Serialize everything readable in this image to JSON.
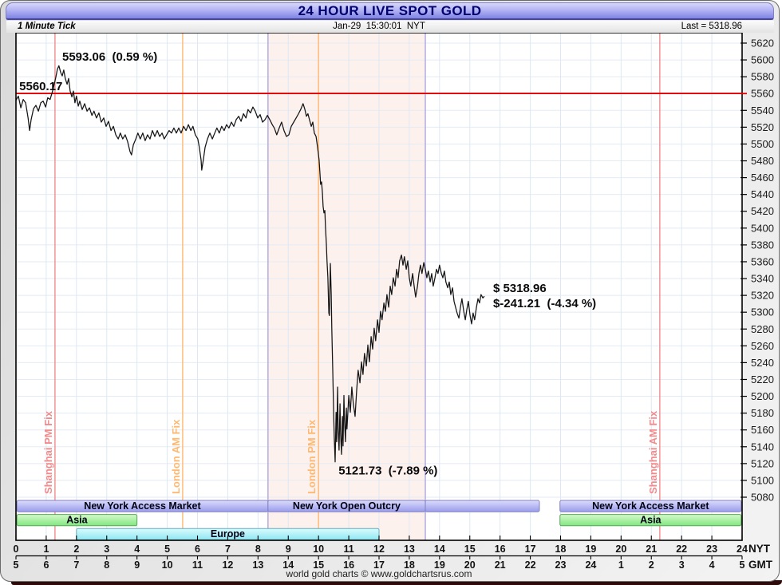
{
  "window": {
    "title": "24 HOUR LIVE SPOT GOLD"
  },
  "subheader": {
    "left": "1 Minute Tick",
    "center": "Jan-29  15:30:01  NYT",
    "right": "Last = 5318.96"
  },
  "footer": "world gold charts © www.goldchartsrus.com",
  "colors": {
    "title_text": "#00006e",
    "grid_h": "#e3ebf4",
    "grid_v": "#dde8f3",
    "pink_band": "#fdf1ee",
    "band_edge": "#b7b1e2",
    "open_line": "#e30000",
    "price_line": "#141414",
    "salmon": "#f28b8b",
    "orange": "#ffb870"
  },
  "chart_data": {
    "type": "line",
    "title": "24 HOUR LIVE SPOT GOLD",
    "subtitle": "1 Minute Tick",
    "timestamp": "Jan-29 15:30:01 NYT",
    "last": 5318.96,
    "open_price": 5560.17,
    "high": 5593.06,
    "high_pct": "0.59 %",
    "low": 5121.73,
    "low_pct": "-7.89 %",
    "change": -241.21,
    "change_pct": "-4.34 %",
    "xlabel": "NYT",
    "xlabel2": "GMT",
    "ylabel": "",
    "x_range_hours": [
      0,
      24
    ],
    "y_axis": {
      "min": 5080,
      "max": 5620,
      "step": 20
    },
    "nyt_ticks": [
      "0",
      "1",
      "2",
      "3",
      "4",
      "5",
      "6",
      "7",
      "8",
      "9",
      "10",
      "11",
      "12",
      "13",
      "14",
      "15",
      "16",
      "17",
      "18",
      "19",
      "20",
      "21",
      "22",
      "23",
      "24"
    ],
    "gmt_ticks": [
      "5",
      "6",
      "7",
      "8",
      "9",
      "10",
      "11",
      "12",
      "13",
      "14",
      "15",
      "16",
      "17",
      "18",
      "19",
      "20",
      "21",
      "22",
      "23",
      "24",
      "1",
      "2",
      "3",
      "4",
      "5"
    ],
    "pink_band": {
      "start": 8.33,
      "end": 13.53
    },
    "fix_lines": [
      {
        "label": "Shanghai PM Fix",
        "hour": 1.29,
        "color": "#f28b8b"
      },
      {
        "label": "London AM Fix",
        "hour": 5.51,
        "color": "#ffb870"
      },
      {
        "label": "London PM Fix",
        "hour": 10.0,
        "color": "#ffb870"
      },
      {
        "label": "Shanghai AM Fix",
        "hour": 21.28,
        "color": "#f28b8b"
      }
    ],
    "annotations": [
      {
        "id": "high-label",
        "text": "5593.06  (0.59 %)",
        "hour": 1.53,
        "price": 5599
      },
      {
        "id": "open-label",
        "text": "5560.17",
        "hour": 0.11,
        "price": 5564
      },
      {
        "id": "last-price",
        "text": "$ 5318.96",
        "hour": 15.77,
        "price": 5324
      },
      {
        "id": "last-change",
        "text": "$-241.21  (-4.34 %)",
        "hour": 15.77,
        "price": 5306
      },
      {
        "id": "low-label",
        "text": "5121.73  (-7.89 %)",
        "hour": 10.66,
        "price": 5107
      }
    ],
    "sessions": [
      {
        "row": 0,
        "style": "periwinkle",
        "segments": [
          {
            "label": "New York Access Market",
            "start": 0.03,
            "end": 8.33
          },
          {
            "label": "New York Open Outcry",
            "start": 8.33,
            "end": 13.53
          },
          {
            "label": "",
            "start": 13.53,
            "end": 17.3
          },
          {
            "label": "New York Access Market",
            "start": 17.98,
            "end": 23.97
          }
        ]
      },
      {
        "row": 1,
        "style": "green",
        "segments": [
          {
            "label": "Asia",
            "start": 0.03,
            "end": 4.0
          },
          {
            "label": "Asia",
            "start": 17.98,
            "end": 23.97
          }
        ]
      },
      {
        "row": 2,
        "style": "cyan",
        "segments": [
          {
            "label": "Europe",
            "start": 2.0,
            "end": 12.0
          }
        ]
      }
    ],
    "series": [
      {
        "name": "Spot Gold (1 minute tick)",
        "points": [
          [
            0.0,
            5552
          ],
          [
            0.08,
            5557
          ],
          [
            0.16,
            5543
          ],
          [
            0.24,
            5553
          ],
          [
            0.32,
            5549
          ],
          [
            0.4,
            5531
          ],
          [
            0.45,
            5516
          ],
          [
            0.5,
            5529
          ],
          [
            0.58,
            5542
          ],
          [
            0.66,
            5546
          ],
          [
            0.74,
            5539
          ],
          [
            0.82,
            5549
          ],
          [
            0.9,
            5551
          ],
          [
            0.98,
            5544
          ],
          [
            1.05,
            5555
          ],
          [
            1.13,
            5553
          ],
          [
            1.21,
            5563
          ],
          [
            1.27,
            5572
          ],
          [
            1.32,
            5580
          ],
          [
            1.37,
            5589
          ],
          [
            1.42,
            5593
          ],
          [
            1.48,
            5585
          ],
          [
            1.53,
            5581
          ],
          [
            1.58,
            5588
          ],
          [
            1.63,
            5578
          ],
          [
            1.69,
            5571
          ],
          [
            1.74,
            5578
          ],
          [
            1.79,
            5563
          ],
          [
            1.85,
            5556
          ],
          [
            1.9,
            5563
          ],
          [
            1.95,
            5549
          ],
          [
            2.0,
            5557
          ],
          [
            2.06,
            5545
          ],
          [
            2.11,
            5551
          ],
          [
            2.19,
            5541
          ],
          [
            2.27,
            5548
          ],
          [
            2.35,
            5539
          ],
          [
            2.43,
            5543
          ],
          [
            2.51,
            5534
          ],
          [
            2.58,
            5539
          ],
          [
            2.66,
            5531
          ],
          [
            2.74,
            5537
          ],
          [
            2.82,
            5526
          ],
          [
            2.9,
            5531
          ],
          [
            2.98,
            5521
          ],
          [
            3.06,
            5527
          ],
          [
            3.14,
            5516
          ],
          [
            3.22,
            5521
          ],
          [
            3.3,
            5511
          ],
          [
            3.38,
            5506
          ],
          [
            3.45,
            5513
          ],
          [
            3.53,
            5506
          ],
          [
            3.61,
            5511
          ],
          [
            3.69,
            5503
          ],
          [
            3.77,
            5491
          ],
          [
            3.82,
            5487
          ],
          [
            3.88,
            5499
          ],
          [
            3.96,
            5506
          ],
          [
            4.03,
            5513
          ],
          [
            4.11,
            5506
          ],
          [
            4.19,
            5513
          ],
          [
            4.27,
            5504
          ],
          [
            4.35,
            5511
          ],
          [
            4.43,
            5506
          ],
          [
            4.51,
            5516
          ],
          [
            4.59,
            5509
          ],
          [
            4.67,
            5516
          ],
          [
            4.75,
            5509
          ],
          [
            4.83,
            5513
          ],
          [
            4.9,
            5506
          ],
          [
            4.98,
            5511
          ],
          [
            5.06,
            5516
          ],
          [
            5.14,
            5513
          ],
          [
            5.22,
            5519
          ],
          [
            5.3,
            5513
          ],
          [
            5.38,
            5519
          ],
          [
            5.46,
            5513
          ],
          [
            5.54,
            5521
          ],
          [
            5.62,
            5516
          ],
          [
            5.7,
            5523
          ],
          [
            5.78,
            5516
          ],
          [
            5.85,
            5521
          ],
          [
            5.93,
            5511
          ],
          [
            6.01,
            5506
          ],
          [
            6.06,
            5496
          ],
          [
            6.12,
            5481
          ],
          [
            6.14,
            5469
          ],
          [
            6.2,
            5483
          ],
          [
            6.25,
            5496
          ],
          [
            6.33,
            5506
          ],
          [
            6.41,
            5513
          ],
          [
            6.49,
            5506
          ],
          [
            6.57,
            5513
          ],
          [
            6.64,
            5519
          ],
          [
            6.72,
            5513
          ],
          [
            6.8,
            5521
          ],
          [
            6.88,
            5516
          ],
          [
            6.96,
            5523
          ],
          [
            7.04,
            5519
          ],
          [
            7.12,
            5526
          ],
          [
            7.2,
            5521
          ],
          [
            7.28,
            5529
          ],
          [
            7.36,
            5533
          ],
          [
            7.44,
            5527
          ],
          [
            7.52,
            5536
          ],
          [
            7.6,
            5531
          ],
          [
            7.67,
            5541
          ],
          [
            7.75,
            5537
          ],
          [
            7.83,
            5544
          ],
          [
            7.91,
            5539
          ],
          [
            7.99,
            5531
          ],
          [
            8.07,
            5535
          ],
          [
            8.15,
            5526
          ],
          [
            8.23,
            5529
          ],
          [
            8.31,
            5534
          ],
          [
            8.39,
            5529
          ],
          [
            8.47,
            5523
          ],
          [
            8.54,
            5519
          ],
          [
            8.62,
            5511
          ],
          [
            8.7,
            5519
          ],
          [
            8.78,
            5526
          ],
          [
            8.86,
            5516
          ],
          [
            8.94,
            5509
          ],
          [
            9.02,
            5511
          ],
          [
            9.1,
            5521
          ],
          [
            9.18,
            5526
          ],
          [
            9.26,
            5531
          ],
          [
            9.34,
            5536
          ],
          [
            9.41,
            5541
          ],
          [
            9.49,
            5548
          ],
          [
            9.55,
            5541
          ],
          [
            9.6,
            5533
          ],
          [
            9.65,
            5536
          ],
          [
            9.7,
            5529
          ],
          [
            9.76,
            5521
          ],
          [
            9.81,
            5526
          ],
          [
            9.86,
            5513
          ],
          [
            9.92,
            5509
          ],
          [
            9.97,
            5496
          ],
          [
            10.02,
            5481
          ],
          [
            10.05,
            5463
          ],
          [
            10.07,
            5452
          ],
          [
            10.1,
            5455
          ],
          [
            10.13,
            5441
          ],
          [
            10.15,
            5426
          ],
          [
            10.18,
            5418
          ],
          [
            10.21,
            5421
          ],
          [
            10.23,
            5401
          ],
          [
            10.26,
            5381
          ],
          [
            10.28,
            5361
          ],
          [
            10.31,
            5341
          ],
          [
            10.34,
            5299
          ],
          [
            10.36,
            5296
          ],
          [
            10.39,
            5358
          ],
          [
            10.42,
            5321
          ],
          [
            10.44,
            5281
          ],
          [
            10.47,
            5231
          ],
          [
            10.5,
            5181
          ],
          [
            10.52,
            5151
          ],
          [
            10.55,
            5122
          ],
          [
            10.58,
            5181
          ],
          [
            10.6,
            5146
          ],
          [
            10.63,
            5211
          ],
          [
            10.65,
            5161
          ],
          [
            10.68,
            5136
          ],
          [
            10.71,
            5191
          ],
          [
            10.73,
            5156
          ],
          [
            10.76,
            5131
          ],
          [
            10.79,
            5176
          ],
          [
            10.81,
            5141
          ],
          [
            10.84,
            5201
          ],
          [
            10.86,
            5171
          ],
          [
            10.89,
            5146
          ],
          [
            10.92,
            5186
          ],
          [
            10.94,
            5161
          ],
          [
            11.0,
            5201
          ],
          [
            11.05,
            5181
          ],
          [
            11.1,
            5211
          ],
          [
            11.15,
            5191
          ],
          [
            11.21,
            5176
          ],
          [
            11.26,
            5206
          ],
          [
            11.31,
            5231
          ],
          [
            11.37,
            5216
          ],
          [
            11.42,
            5241
          ],
          [
            11.47,
            5226
          ],
          [
            11.52,
            5251
          ],
          [
            11.58,
            5236
          ],
          [
            11.63,
            5261
          ],
          [
            11.68,
            5241
          ],
          [
            11.74,
            5271
          ],
          [
            11.79,
            5256
          ],
          [
            11.84,
            5281
          ],
          [
            11.89,
            5266
          ],
          [
            11.95,
            5291
          ],
          [
            12.0,
            5276
          ],
          [
            12.05,
            5301
          ],
          [
            12.1,
            5291
          ],
          [
            12.16,
            5311
          ],
          [
            12.21,
            5301
          ],
          [
            12.26,
            5321
          ],
          [
            12.32,
            5306
          ],
          [
            12.37,
            5331
          ],
          [
            12.42,
            5321
          ],
          [
            12.47,
            5341
          ],
          [
            12.53,
            5331
          ],
          [
            12.58,
            5351
          ],
          [
            12.63,
            5341
          ],
          [
            12.68,
            5361
          ],
          [
            12.74,
            5368
          ],
          [
            12.79,
            5356
          ],
          [
            12.84,
            5366
          ],
          [
            12.9,
            5351
          ],
          [
            12.95,
            5361
          ],
          [
            13.0,
            5341
          ],
          [
            13.05,
            5331
          ],
          [
            13.11,
            5346
          ],
          [
            13.16,
            5331
          ],
          [
            13.21,
            5318
          ],
          [
            13.27,
            5331
          ],
          [
            13.32,
            5346
          ],
          [
            13.37,
            5356
          ],
          [
            13.42,
            5346
          ],
          [
            13.48,
            5359
          ],
          [
            13.53,
            5351
          ],
          [
            13.58,
            5341
          ],
          [
            13.63,
            5349
          ],
          [
            13.69,
            5336
          ],
          [
            13.74,
            5346
          ],
          [
            13.79,
            5331
          ],
          [
            13.85,
            5341
          ],
          [
            13.9,
            5351
          ],
          [
            13.95,
            5346
          ],
          [
            14.0,
            5356
          ],
          [
            14.06,
            5346
          ],
          [
            14.11,
            5341
          ],
          [
            14.16,
            5349
          ],
          [
            14.21,
            5336
          ],
          [
            14.27,
            5329
          ],
          [
            14.32,
            5336
          ],
          [
            14.37,
            5321
          ],
          [
            14.43,
            5329
          ],
          [
            14.48,
            5313
          ],
          [
            14.53,
            5306
          ],
          [
            14.58,
            5299
          ],
          [
            14.64,
            5293
          ],
          [
            14.69,
            5306
          ],
          [
            14.74,
            5316
          ],
          [
            14.8,
            5301
          ],
          [
            14.85,
            5291
          ],
          [
            14.9,
            5303
          ],
          [
            14.95,
            5313
          ],
          [
            15.01,
            5296
          ],
          [
            15.06,
            5286
          ],
          [
            15.11,
            5299
          ],
          [
            15.16,
            5291
          ],
          [
            15.22,
            5306
          ],
          [
            15.27,
            5316
          ],
          [
            15.32,
            5311
          ],
          [
            15.37,
            5321
          ],
          [
            15.43,
            5317
          ],
          [
            15.48,
            5319
          ]
        ]
      }
    ]
  }
}
